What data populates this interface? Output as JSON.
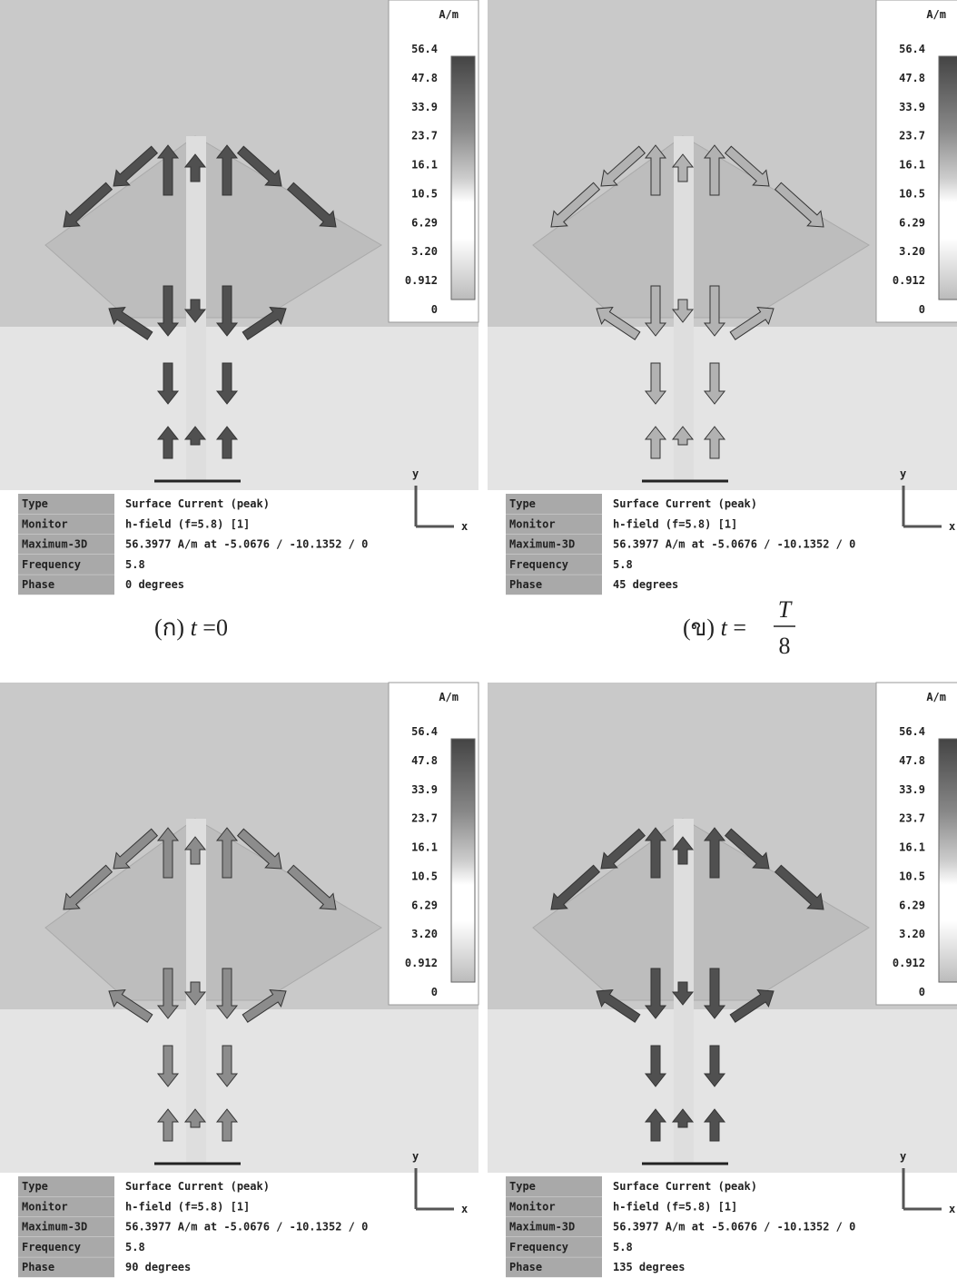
{
  "panels": [
    {
      "unit": "A/m",
      "scale": [
        "56.4",
        "47.8",
        "33.9",
        "23.7",
        "16.1",
        "10.5",
        "6.29",
        "3.20",
        "0.912",
        "0"
      ],
      "info": [
        [
          "Type",
          "Surface Current (peak)"
        ],
        [
          "Monitor",
          "h-field (f=5.8) [1]"
        ],
        [
          "Maximum-3D",
          "56.3977 A/m at -5.0676 / -10.1352 / 0"
        ],
        [
          "Frequency",
          "5.8"
        ],
        [
          "Phase",
          "0 degrees"
        ]
      ],
      "axes": [
        "y",
        "x"
      ]
    },
    {
      "unit": "A/m",
      "scale": [
        "56.4",
        "47.8",
        "33.9",
        "23.7",
        "16.1",
        "10.5",
        "6.29",
        "3.20",
        "0.912",
        "0"
      ],
      "info": [
        [
          "Type",
          "Surface Current (peak)"
        ],
        [
          "Monitor",
          "h-field (f=5.8) [1]"
        ],
        [
          "Maximum-3D",
          "56.3977 A/m at -5.0676 / -10.1352 / 0"
        ],
        [
          "Frequency",
          "5.8"
        ],
        [
          "Phase",
          "45 degrees"
        ]
      ],
      "axes": [
        "y",
        "x"
      ]
    },
    {
      "unit": "A/m",
      "scale": [
        "56.4",
        "47.8",
        "33.9",
        "23.7",
        "16.1",
        "10.5",
        "6.29",
        "3.20",
        "0.912",
        "0"
      ],
      "info": [
        [
          "Type",
          "Surface Current (peak)"
        ],
        [
          "Monitor",
          "h-field (f=5.8) [1]"
        ],
        [
          "Maximum-3D",
          "56.3977 A/m at -5.0676 / -10.1352 / 0"
        ],
        [
          "Frequency",
          "5.8"
        ],
        [
          "Phase",
          "90 degrees"
        ]
      ],
      "axes": [
        "y",
        "x"
      ]
    },
    {
      "unit": "A/m",
      "scale": [
        "56.4",
        "47.8",
        "33.9",
        "23.7",
        "16.1",
        "10.5",
        "6.29",
        "3.20",
        "0.912",
        "0"
      ],
      "info": [
        [
          "Type",
          "Surface Current (peak)"
        ],
        [
          "Monitor",
          "h-field (f=5.8) [1]"
        ],
        [
          "Maximum-3D",
          "56.3977 A/m at -5.0676 / -10.1352 / 0"
        ],
        [
          "Frequency",
          "5.8"
        ],
        [
          "Phase",
          "135 degrees"
        ]
      ],
      "axes": [
        "y",
        "x"
      ]
    }
  ],
  "captions": [
    {
      "label": "(ก)",
      "var": "t",
      "eq": "=",
      "value": "0"
    },
    {
      "label": "(ข)",
      "var": "t",
      "eq": "=",
      "numerator": "T",
      "denominator": "8"
    }
  ]
}
